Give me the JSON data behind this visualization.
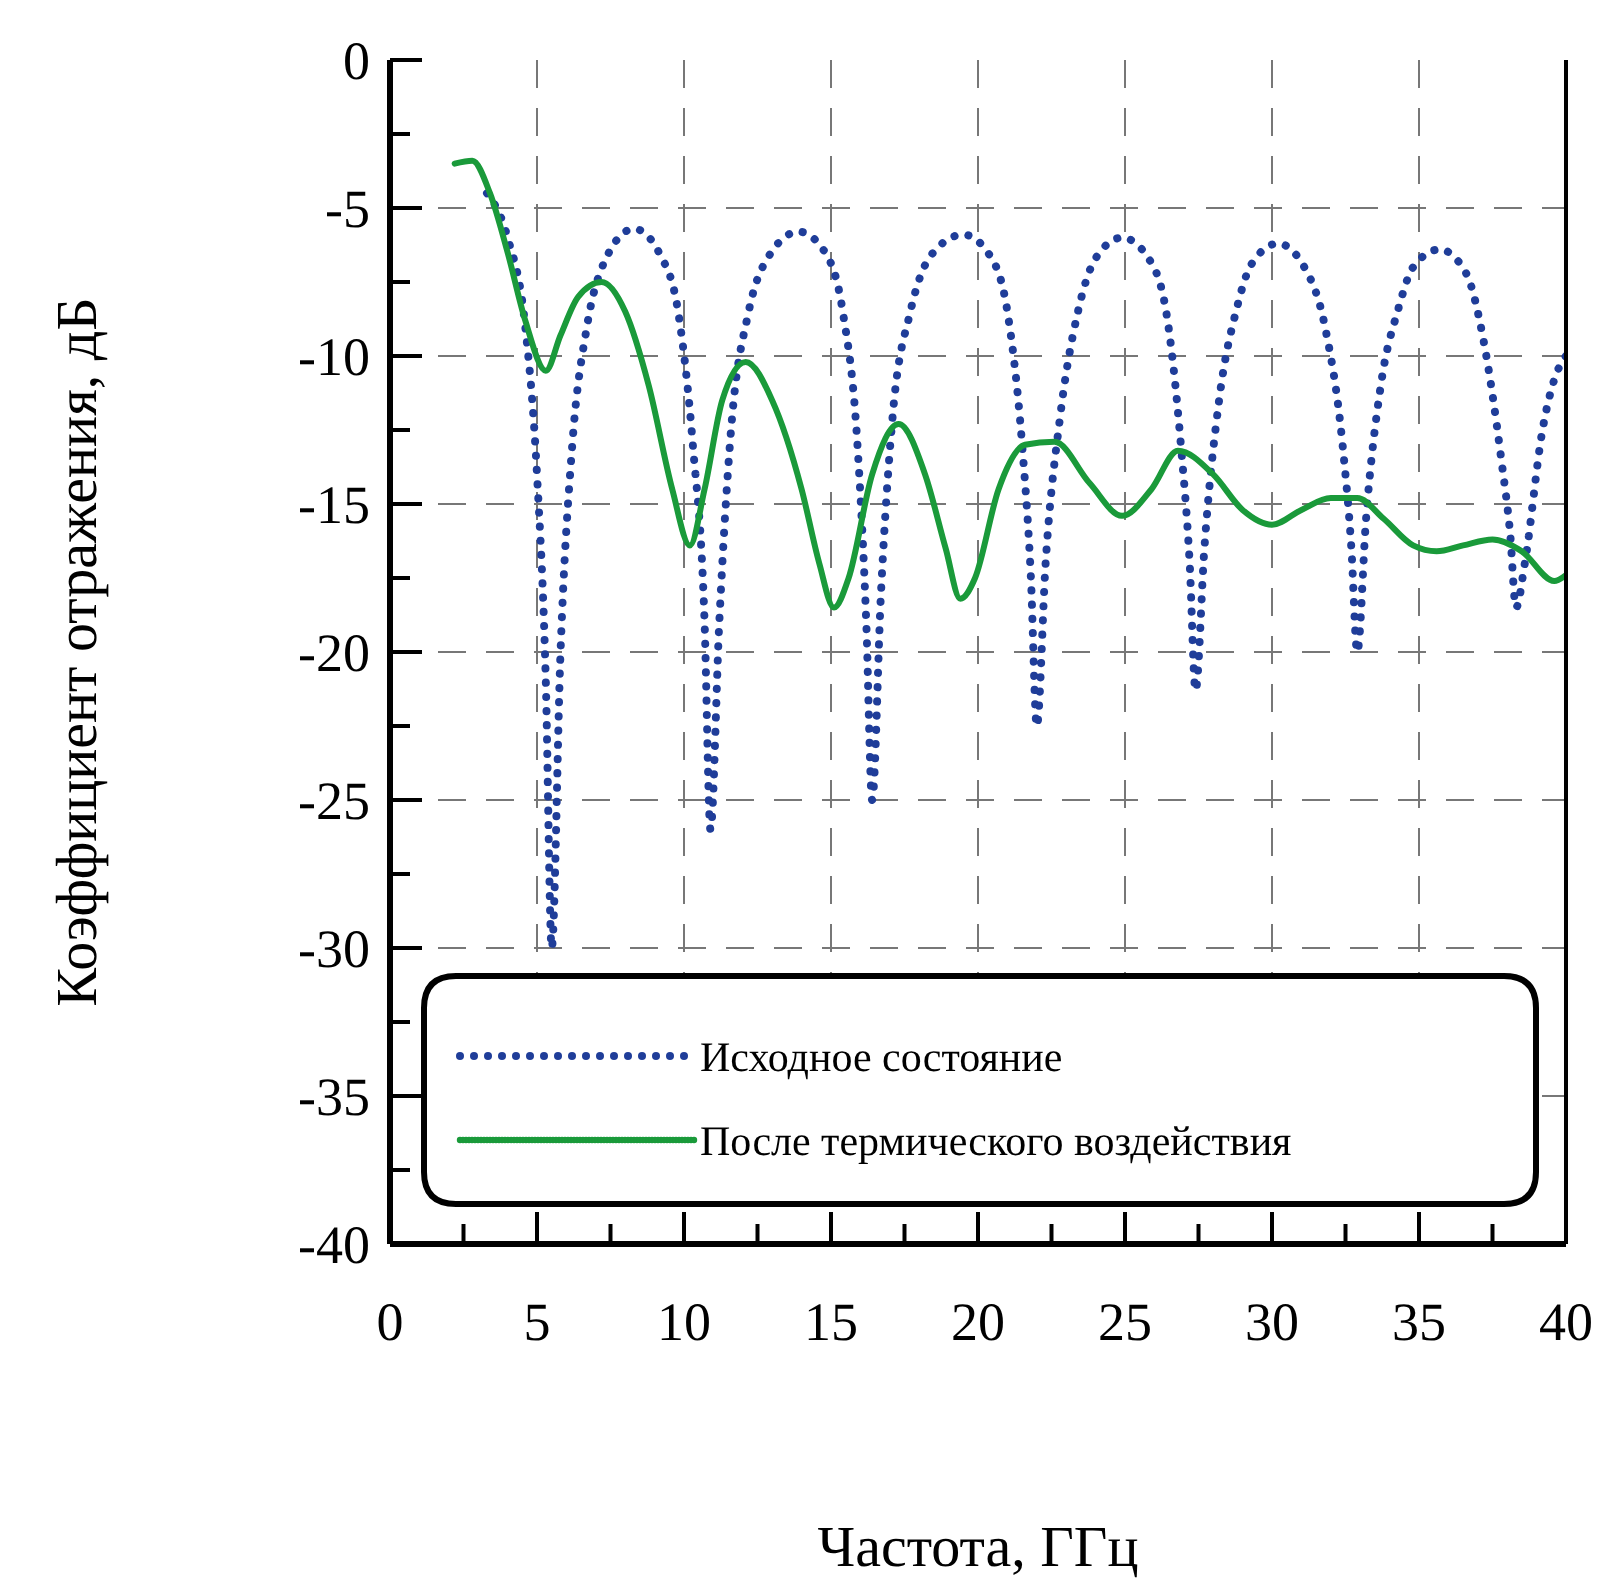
{
  "chart_data": {
    "type": "line",
    "xlabel": "Частота, ГГц",
    "ylabel": "Коэффициент отражения, дБ",
    "xlim": [
      0,
      40
    ],
    "ylim": [
      -40,
      0
    ],
    "xticks": [
      0,
      {
        "value": 2.5,
        "label": null
      },
      5,
      {
        "value": 7.5,
        "label": null
      },
      10,
      {
        "value": 12.5,
        "label": null
      },
      15,
      {
        "value": 17.5,
        "label": null
      },
      20,
      {
        "value": 22.5,
        "label": null
      },
      25,
      {
        "value": 27.5,
        "label": null
      },
      30,
      {
        "value": 32.5,
        "label": null
      },
      35,
      {
        "value": 37.5,
        "label": null
      },
      40
    ],
    "yticks": [
      -40,
      {
        "value": -37.5,
        "label": null
      },
      -35,
      {
        "value": -32.5,
        "label": null
      },
      -30,
      {
        "value": -27.5,
        "label": null
      },
      -25,
      {
        "value": -22.5,
        "label": null
      },
      -20,
      {
        "value": -17.5,
        "label": null
      },
      -15,
      {
        "value": -12.5,
        "label": null
      },
      -10,
      {
        "value": -7.5,
        "label": null
      },
      -5,
      {
        "value": -2.5,
        "label": null
      },
      0
    ],
    "grid": true,
    "legend": "bottom",
    "series": [
      {
        "name": "Исходное состояние",
        "color": "#1f3d99",
        "line_style": "dotted",
        "x": [
          3.3,
          4.0,
          4.6,
          5.0,
          5.3,
          5.5,
          5.8,
          6.2,
          6.7,
          7.3,
          8.3,
          9.2,
          9.8,
          10.3,
          10.7,
          10.9,
          11.2,
          11.6,
          12.2,
          12.9,
          13.9,
          14.8,
          15.4,
          15.9,
          16.2,
          16.4,
          16.7,
          17.1,
          17.7,
          18.4,
          19.5,
          20.4,
          21.0,
          21.5,
          21.8,
          22.0,
          22.3,
          22.8,
          23.4,
          24.0,
          24.9,
          25.8,
          26.4,
          26.9,
          27.2,
          27.4,
          27.7,
          28.2,
          28.8,
          29.3,
          30.2,
          31.1,
          31.8,
          32.4,
          32.7,
          32.9,
          33.2,
          33.7,
          34.3,
          34.8,
          35.7,
          36.6,
          37.2,
          37.8,
          38.1,
          38.3,
          38.6,
          39.2,
          39.6,
          40.0
        ],
        "values": [
          -4.5,
          -6,
          -9,
          -14,
          -21,
          -30,
          -20,
          -13,
          -9,
          -6.8,
          -5.7,
          -6.6,
          -8.5,
          -13,
          -19,
          -26,
          -19,
          -12.5,
          -8.5,
          -6.6,
          -5.8,
          -6.5,
          -8.5,
          -13,
          -19,
          -25,
          -18,
          -12,
          -8.5,
          -6.6,
          -5.9,
          -6.6,
          -8.5,
          -13,
          -17.5,
          -22.5,
          -17,
          -12,
          -8.5,
          -6.7,
          -6,
          -6.7,
          -8.5,
          -13,
          -17,
          -21.3,
          -16.5,
          -11.5,
          -8.4,
          -6.9,
          -6.2,
          -7,
          -9,
          -13,
          -16.5,
          -20,
          -15.5,
          -11,
          -8.4,
          -7,
          -6.4,
          -7.2,
          -9.5,
          -13.5,
          -16,
          -18.5,
          -17,
          -12.5,
          -10.8,
          -10
        ]
      },
      {
        "name": "После термического воздействия",
        "color": "#1a9a3a",
        "line_style": "solid",
        "x": [
          2.2,
          2.8,
          3.4,
          4.0,
          4.6,
          5.3,
          5.8,
          6.4,
          7.2,
          8.0,
          8.8,
          9.6,
          10.2,
          10.7,
          11.3,
          12.1,
          13.0,
          14.0,
          14.6,
          15.1,
          15.6,
          16.4,
          17.3,
          18.2,
          18.9,
          19.4,
          19.9,
          20.7,
          21.6,
          22.6,
          23.8,
          24.9,
          25.9,
          26.8,
          28.0,
          29.0,
          30.0,
          31.0,
          32.0,
          32.9,
          33.8,
          34.8,
          35.6,
          36.5,
          37.5,
          38.5,
          39.6,
          40.0
        ],
        "values": [
          -3.5,
          -3.4,
          -4.5,
          -6.5,
          -8.8,
          -10.5,
          -9.3,
          -8,
          -7.5,
          -8.5,
          -11,
          -14.5,
          -16.4,
          -14.5,
          -11.5,
          -10.2,
          -11.5,
          -14.5,
          -17,
          -18.5,
          -17.5,
          -14,
          -12.3,
          -14,
          -16.5,
          -18.2,
          -17.5,
          -14.5,
          -13,
          -12.9,
          -14.3,
          -15.4,
          -14.5,
          -13.2,
          -14,
          -15.2,
          -15.7,
          -15.2,
          -14.8,
          -14.8,
          -15.5,
          -16.4,
          -16.6,
          -16.4,
          -16.2,
          -16.6,
          -17.6,
          -17.4
        ]
      }
    ]
  }
}
